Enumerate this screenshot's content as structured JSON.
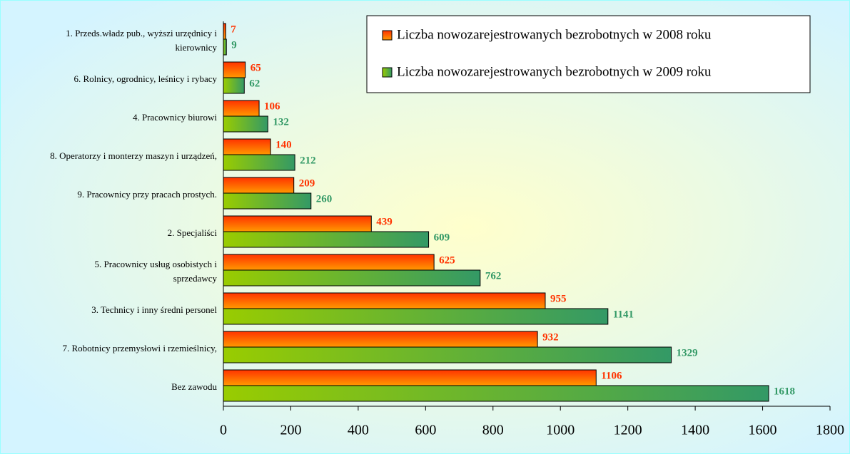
{
  "chart_data": {
    "type": "bar",
    "orientation": "horizontal",
    "categories": [
      "1. Przeds.władz pub., wyższi urzędnicy i\nkierownicy",
      "6. Rolnicy, ogrodnicy, leśnicy i rybacy",
      "4. Pracownicy biurowi",
      "8. Operatorzy i monterzy maszyn i urządzeń,",
      "9. Pracownicy przy pracach prostych.",
      "2. Specjaliści",
      "5. Pracownicy usług osobistych i\nsprzedawcy",
      "3. Technicy i inny średni personel",
      "7. Robotnicy przemysłowi i rzemieślnicy,",
      "Bez zawodu"
    ],
    "series": [
      {
        "name": "Liczba nowozarejestrowanych bezrobotnych w 2008 roku",
        "color": "#ff3300",
        "values": [
          7,
          65,
          106,
          140,
          209,
          439,
          625,
          955,
          932,
          1106
        ]
      },
      {
        "name": "Liczba nowozarejestrowanych bezrobotnych w 2009 roku",
        "color": "#339966",
        "values": [
          9,
          62,
          132,
          212,
          260,
          609,
          762,
          1141,
          1329,
          1618
        ]
      }
    ],
    "xlim": [
      0,
      1800
    ],
    "xticks": [
      0,
      200,
      400,
      600,
      800,
      1000,
      1200,
      1400,
      1600,
      1800
    ],
    "legend": "top-right",
    "grid": false
  }
}
